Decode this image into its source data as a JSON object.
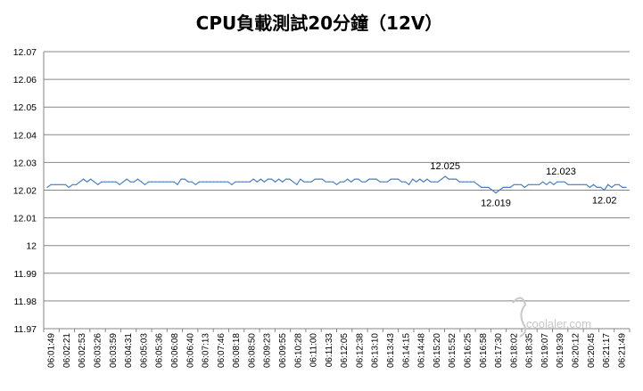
{
  "colors": {
    "line": "#4a7ebb",
    "grid": "#868686",
    "axis": "#868686",
    "text": "#000000",
    "watermark": "#c8c8c8"
  },
  "watermark": {
    "text": "coolaler.com"
  },
  "chart_data": {
    "type": "line",
    "title": "CPU負載測試20分鐘（12V）",
    "xlabel": "",
    "ylabel": "",
    "ylim": [
      11.97,
      12.07
    ],
    "yticks": [
      "12.07",
      "12.06",
      "12.05",
      "12.04",
      "12.03",
      "12.02",
      "12.01",
      "12",
      "11.99",
      "11.98",
      "11.97"
    ],
    "grid": true,
    "legend": "none",
    "x_ticks": [
      "06:01:49",
      "06:02:21",
      "06:02:53",
      "06:03:26",
      "06:03:59",
      "06:04:31",
      "06:05:03",
      "06:05:36",
      "06:06:08",
      "06:06:40",
      "06:07:13",
      "06:07:46",
      "06:08:18",
      "06:08:50",
      "06:09:23",
      "06:09:55",
      "06:10:28",
      "06:11:00",
      "06:11:33",
      "06:12:05",
      "06:12:38",
      "06:13:10",
      "06:13:43",
      "06:14:15",
      "06:14:48",
      "06:15:20",
      "06:15:52",
      "06:16:25",
      "06:16:58",
      "06:17:30",
      "06:18:02",
      "06:18:35",
      "06:19:07",
      "06:19:39",
      "06:20:12",
      "06:20:45",
      "06:21:17",
      "06:21:49"
    ],
    "series": [
      {
        "values": [
          12.021,
          12.022,
          12.022,
          12.022,
          12.022,
          12.022,
          12.021,
          12.022,
          12.022,
          12.023,
          12.024,
          12.023,
          12.024,
          12.023,
          12.022,
          12.023,
          12.023,
          12.023,
          12.023,
          12.023,
          12.022,
          12.023,
          12.024,
          12.023,
          12.023,
          12.024,
          12.023,
          12.022,
          12.023,
          12.023,
          12.023,
          12.023,
          12.023,
          12.023,
          12.023,
          12.023,
          12.022,
          12.024,
          12.024,
          12.023,
          12.023,
          12.022,
          12.023,
          12.023,
          12.023,
          12.023,
          12.023,
          12.023,
          12.023,
          12.023,
          12.023,
          12.022,
          12.023,
          12.023,
          12.023,
          12.023,
          12.023,
          12.024,
          12.023,
          12.024,
          12.023,
          12.024,
          12.024,
          12.023,
          12.024,
          12.023,
          12.024,
          12.024,
          12.023,
          12.022,
          12.024,
          12.023,
          12.023,
          12.023,
          12.024,
          12.024,
          12.024,
          12.023,
          12.023,
          12.023,
          12.022,
          12.023,
          12.023,
          12.024,
          12.023,
          12.024,
          12.024,
          12.023,
          12.023,
          12.024,
          12.024,
          12.024,
          12.023,
          12.023,
          12.023,
          12.024,
          12.024,
          12.024,
          12.023,
          12.023,
          12.022,
          12.024,
          12.023,
          12.024,
          12.023,
          12.024,
          12.023,
          12.023,
          12.023,
          12.024,
          12.025,
          12.024,
          12.024,
          12.024,
          12.023,
          12.023,
          12.023,
          12.023,
          12.023,
          12.022,
          12.021,
          12.021,
          12.021,
          12.02,
          12.019,
          12.02,
          12.021,
          12.021,
          12.021,
          12.022,
          12.022,
          12.022,
          12.021,
          12.022,
          12.022,
          12.022,
          12.022,
          12.023,
          12.022,
          12.023,
          12.022,
          12.023,
          12.023,
          12.023,
          12.022,
          12.022,
          12.022,
          12.022,
          12.022,
          12.022,
          12.021,
          12.022,
          12.021,
          12.021,
          12.02,
          12.022,
          12.021,
          12.022,
          12.022,
          12.021,
          12.021
        ]
      }
    ],
    "annotations": [
      {
        "text": "12.025",
        "x_index": 110,
        "value": 12.025
      },
      {
        "text": "12.019",
        "x_index": 124,
        "value": 12.019
      },
      {
        "text": "12.023",
        "x_index": 142,
        "value": 12.023
      },
      {
        "text": "12.02",
        "x_index": 154,
        "value": 12.02
      }
    ]
  }
}
